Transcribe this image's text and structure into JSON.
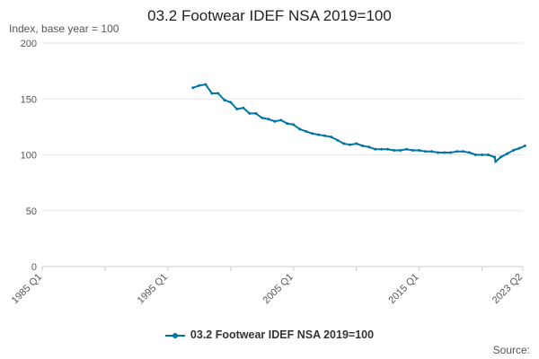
{
  "chart_data": {
    "type": "line",
    "title": "03.2 Footwear IDEF NSA 2019=100",
    "subtitle": "Index, base year = 100",
    "xlabel": "",
    "ylabel": "",
    "ylim": [
      0,
      200
    ],
    "yticks": [
      0,
      50,
      100,
      150,
      200
    ],
    "xlim": [
      "1985 Q1",
      "2023 Q2"
    ],
    "xticks": [
      "1985 Q1",
      "1995 Q1",
      "2005 Q1",
      "2015 Q1",
      "2023 Q2"
    ],
    "grid": true,
    "legend_position": "bottom",
    "colors": {
      "series": "#0075a3",
      "grid": "#e6e6e6",
      "axis": "#cccccc"
    },
    "series": [
      {
        "name": "03.2 Footwear IDEF NSA 2019=100",
        "points": [
          {
            "x": "1997 Jan",
            "y": 160
          },
          {
            "x": "1997 Jul",
            "y": 162
          },
          {
            "x": "1998 Jan",
            "y": 163
          },
          {
            "x": "1998 Jul",
            "y": 155
          },
          {
            "x": "1999 Jan",
            "y": 155
          },
          {
            "x": "1999 Jul",
            "y": 149
          },
          {
            "x": "2000 Jan",
            "y": 147
          },
          {
            "x": "2000 Jul",
            "y": 141
          },
          {
            "x": "2001 Jan",
            "y": 142
          },
          {
            "x": "2001 Jul",
            "y": 137
          },
          {
            "x": "2002 Jan",
            "y": 137
          },
          {
            "x": "2002 Jul",
            "y": 133
          },
          {
            "x": "2003 Jan",
            "y": 132
          },
          {
            "x": "2003 Jul",
            "y": 130
          },
          {
            "x": "2004 Jan",
            "y": 131
          },
          {
            "x": "2004 Jul",
            "y": 128
          },
          {
            "x": "2005 Jan",
            "y": 127
          },
          {
            "x": "2005 Jul",
            "y": 123
          },
          {
            "x": "2006 Jan",
            "y": 121
          },
          {
            "x": "2006 Jul",
            "y": 119
          },
          {
            "x": "2007 Jan",
            "y": 118
          },
          {
            "x": "2007 Jul",
            "y": 117
          },
          {
            "x": "2008 Jan",
            "y": 116
          },
          {
            "x": "2008 Jul",
            "y": 113
          },
          {
            "x": "2009 Jan",
            "y": 110
          },
          {
            "x": "2009 Jul",
            "y": 109
          },
          {
            "x": "2010 Jan",
            "y": 110
          },
          {
            "x": "2010 Jul",
            "y": 108
          },
          {
            "x": "2011 Jan",
            "y": 107
          },
          {
            "x": "2011 Jul",
            "y": 105
          },
          {
            "x": "2012 Jan",
            "y": 105
          },
          {
            "x": "2012 Jul",
            "y": 105
          },
          {
            "x": "2013 Jan",
            "y": 104
          },
          {
            "x": "2013 Jul",
            "y": 104
          },
          {
            "x": "2014 Jan",
            "y": 105
          },
          {
            "x": "2014 Jul",
            "y": 104
          },
          {
            "x": "2015 Jan",
            "y": 104
          },
          {
            "x": "2015 Jul",
            "y": 103
          },
          {
            "x": "2016 Jan",
            "y": 103
          },
          {
            "x": "2016 Jul",
            "y": 102
          },
          {
            "x": "2017 Jan",
            "y": 102
          },
          {
            "x": "2017 Jul",
            "y": 102
          },
          {
            "x": "2018 Jan",
            "y": 103
          },
          {
            "x": "2018 Jul",
            "y": 103
          },
          {
            "x": "2019 Jan",
            "y": 102
          },
          {
            "x": "2019 Jul",
            "y": 100
          },
          {
            "x": "2020 Jan",
            "y": 100
          },
          {
            "x": "2020 Jul",
            "y": 100
          },
          {
            "x": "2021 Jan",
            "y": 98
          },
          {
            "x": "2021 Feb",
            "y": 94
          },
          {
            "x": "2021 Jul",
            "y": 98
          },
          {
            "x": "2022 Jan",
            "y": 101
          },
          {
            "x": "2022 Jul",
            "y": 104
          },
          {
            "x": "2023 Jan",
            "y": 106
          },
          {
            "x": "2023 Jun",
            "y": 108
          }
        ]
      }
    ]
  },
  "source_label": "Source:"
}
